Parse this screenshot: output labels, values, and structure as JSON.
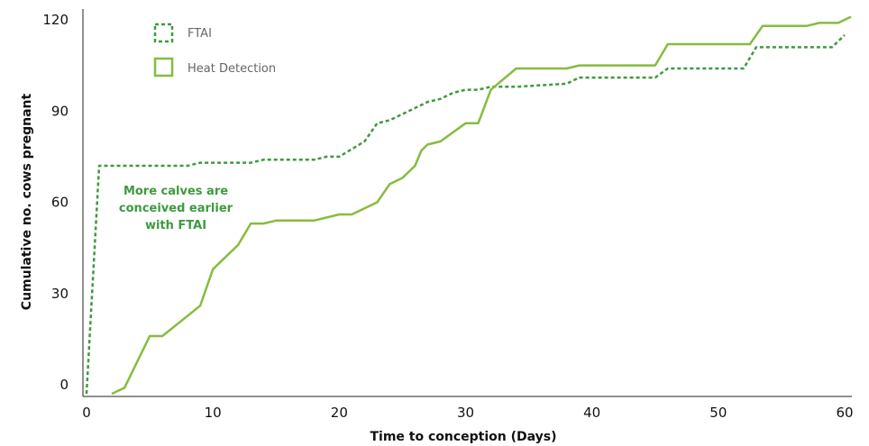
{
  "chart_data": {
    "type": "line",
    "xlabel": "Time to conception (Days)",
    "ylabel": "Cumulative no. cows pregnant",
    "xlim": [
      0,
      60
    ],
    "ylim": [
      0,
      120
    ],
    "xticks": [
      "0",
      "10",
      "20",
      "30",
      "40",
      "50",
      "60"
    ],
    "yticks": [
      "0",
      "30",
      "60",
      "90",
      "120"
    ],
    "grid": false,
    "legend_position": "top-left",
    "annotation": [
      "More calves are",
      "conceived earlier",
      "with FTAI"
    ],
    "series": [
      {
        "name": "FTAI",
        "style": "dashed",
        "color": "#3e9a3e",
        "x": [
          0,
          1,
          4,
          8,
          9,
          12,
          13,
          14,
          18,
          19,
          20,
          22,
          23,
          24,
          26,
          27,
          28,
          29,
          30,
          31,
          32,
          34,
          38,
          39,
          45,
          46,
          52,
          53,
          59,
          60
        ],
        "y": [
          -3,
          72,
          72,
          72,
          73,
          73,
          73,
          74,
          74,
          75,
          75,
          80,
          86,
          87,
          91,
          93,
          94,
          96,
          97,
          97,
          98,
          98,
          99,
          101,
          101,
          104,
          104,
          111,
          111,
          115
        ]
      },
      {
        "name": "Heat Detection",
        "style": "solid",
        "color": "#86bc3f",
        "x": [
          2,
          3,
          5,
          6,
          9,
          10,
          12,
          13,
          14,
          15,
          18,
          20,
          21,
          23,
          24,
          25,
          26,
          26.5,
          27,
          28,
          29,
          30,
          31,
          32,
          34,
          38,
          39,
          45,
          46,
          52.5,
          53.5,
          57,
          58,
          59.5,
          60.5
        ],
        "y": [
          -3,
          -1,
          16,
          16,
          26,
          38,
          46,
          53,
          53,
          54,
          54,
          56,
          56,
          60,
          66,
          68,
          72,
          77,
          79,
          80,
          83,
          86,
          86,
          97,
          104,
          104,
          105,
          105,
          112,
          112,
          118,
          118,
          119,
          119,
          121
        ]
      }
    ]
  }
}
